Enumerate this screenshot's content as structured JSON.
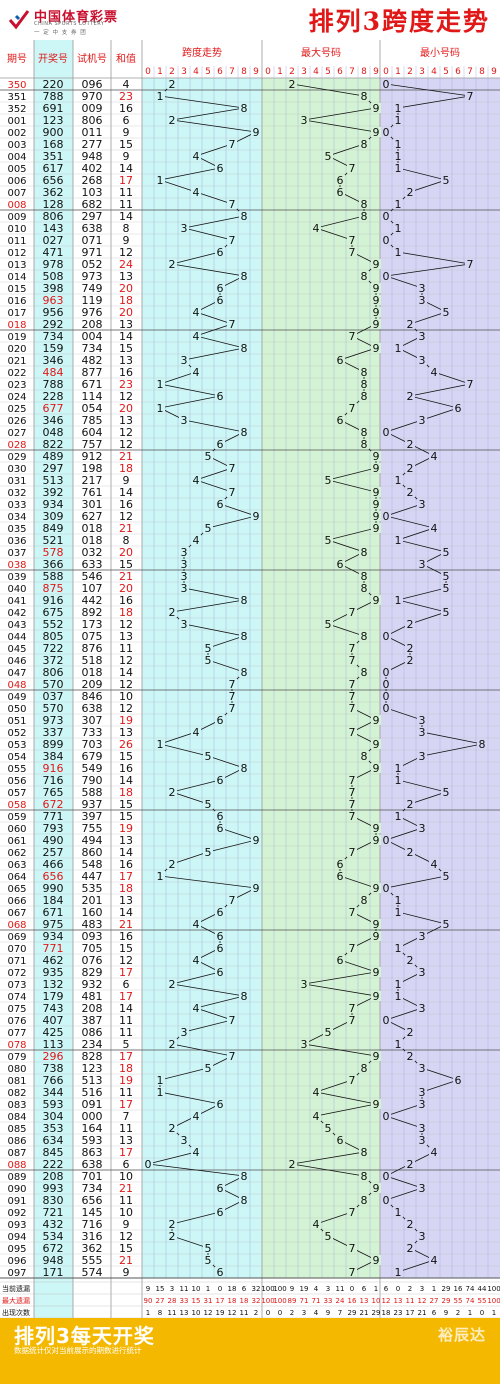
{
  "header": {
    "logo_name": "中国体育彩票",
    "logo_en": "CHINA SPORTS LOTTERY",
    "logo_sub": "一 定 中 支 券 团",
    "title": "排列3跨度走势"
  },
  "columns": {
    "period": "期号",
    "draw": "开奖号",
    "test": "试机号",
    "sum": "和值",
    "span_trend": "跨度走势",
    "max_digit": "最大号码",
    "min_digit": "最小号码"
  },
  "digits": [
    "0",
    "1",
    "2",
    "3",
    "4",
    "5",
    "6",
    "7",
    "8",
    "9"
  ],
  "colors": {
    "accent": "#e01818",
    "line": "#111111",
    "span_bg": "#cdf6f6",
    "max_bg": "#d4f3d4",
    "min_bg": "#d6d6f4",
    "period_bg": "#fce4ec",
    "footer_bg": "#f5b800"
  },
  "stats_labels": [
    "当前遗漏",
    "最大遗漏",
    "出现次数",
    "最大连出"
  ],
  "stats": {
    "span": [
      [
        "9",
        "15",
        "3",
        "11",
        "10",
        "1",
        "0",
        "18",
        "6",
        "32"
      ],
      [
        "90",
        "27",
        "28",
        "33",
        "15",
        "31",
        "17",
        "18",
        "18",
        "32"
      ],
      [
        "1",
        "8",
        "11",
        "13",
        "10",
        "12",
        "19",
        "12",
        "11",
        "2"
      ],
      [
        "1",
        "2",
        "3",
        "4",
        "1",
        "2",
        "2",
        "3",
        "1",
        "1"
      ]
    ],
    "max": [
      [
        "100",
        "100",
        "9",
        "19",
        "4",
        "3",
        "11",
        "0",
        "6",
        "1"
      ],
      [
        "100",
        "100",
        "89",
        "71",
        "71",
        "33",
        "24",
        "16",
        "13",
        "10"
      ],
      [
        "0",
        "0",
        "2",
        "3",
        "4",
        "9",
        "7",
        "29",
        "21",
        "29"
      ],
      [
        "0",
        "0",
        "1",
        "1",
        "1",
        "2",
        "1",
        "3",
        "3",
        "4"
      ]
    ],
    "min": [
      [
        "6",
        "0",
        "2",
        "3",
        "1",
        "29",
        "16",
        "74",
        "44",
        "100"
      ],
      [
        "12",
        "13",
        "11",
        "12",
        "27",
        "29",
        "55",
        "74",
        "55",
        "100"
      ],
      [
        "18",
        "23",
        "17",
        "21",
        "6",
        "9",
        "2",
        "1",
        "0",
        "1"
      ],
      [
        "4",
        "3",
        "2",
        "2",
        "1",
        "2",
        "1",
        "1",
        "0",
        "0"
      ]
    ]
  },
  "footer": {
    "title": "排列3每天开奖",
    "note": "数据统计仅对当前展示的期数进行统计",
    "brand": "裕辰达"
  },
  "chart_data": {
    "type": "table",
    "title": "排列3跨度走势",
    "columns": [
      "期号",
      "开奖号",
      "试机号",
      "和值",
      "跨度走势",
      "最大号码",
      "最小号码"
    ],
    "rows": [
      {
        "p": "350",
        "d": "220",
        "t": "096",
        "s": 4,
        "span": 2,
        "max": 2,
        "min": 0
      },
      {
        "p": "351",
        "d": "788",
        "t": "970",
        "s": 23,
        "span": 1,
        "max": 8,
        "min": 7
      },
      {
        "p": "352",
        "d": "691",
        "t": "009",
        "s": 16,
        "span": 8,
        "max": 9,
        "min": 1
      },
      {
        "p": "001",
        "d": "123",
        "t": "806",
        "s": 6,
        "span": 2,
        "max": 3,
        "min": 1
      },
      {
        "p": "002",
        "d": "900",
        "t": "011",
        "s": 9,
        "span": 9,
        "max": 9,
        "min": 0
      },
      {
        "p": "003",
        "d": "168",
        "t": "277",
        "s": 15,
        "span": 7,
        "max": 8,
        "min": 1
      },
      {
        "p": "004",
        "d": "351",
        "t": "948",
        "s": 9,
        "span": 4,
        "max": 5,
        "min": 1
      },
      {
        "p": "005",
        "d": "617",
        "t": "402",
        "s": 14,
        "span": 6,
        "max": 7,
        "min": 1
      },
      {
        "p": "006",
        "d": "656",
        "t": "268",
        "s": 17,
        "span": 1,
        "max": 6,
        "min": 5
      },
      {
        "p": "007",
        "d": "362",
        "t": "103",
        "s": 11,
        "span": 4,
        "max": 6,
        "min": 2
      },
      {
        "p": "008",
        "d": "128",
        "t": "682",
        "s": 11,
        "span": 7,
        "max": 8,
        "min": 1
      },
      {
        "p": "009",
        "d": "806",
        "t": "297",
        "s": 14,
        "span": 8,
        "max": 8,
        "min": 0
      },
      {
        "p": "010",
        "d": "143",
        "t": "638",
        "s": 8,
        "span": 3,
        "max": 4,
        "min": 1
      },
      {
        "p": "011",
        "d": "027",
        "t": "071",
        "s": 9,
        "span": 7,
        "max": 7,
        "min": 0
      },
      {
        "p": "012",
        "d": "471",
        "t": "971",
        "s": 12,
        "span": 6,
        "max": 7,
        "min": 1
      },
      {
        "p": "013",
        "d": "978",
        "t": "052",
        "s": 24,
        "span": 2,
        "max": 9,
        "min": 7
      },
      {
        "p": "014",
        "d": "508",
        "t": "973",
        "s": 13,
        "span": 8,
        "max": 8,
        "min": 0
      },
      {
        "p": "015",
        "d": "398",
        "t": "749",
        "s": 20,
        "span": 6,
        "max": 9,
        "min": 3
      },
      {
        "p": "016",
        "d": "963",
        "t": "119",
        "s": 18,
        "span": 6,
        "max": 9,
        "min": 3
      },
      {
        "p": "017",
        "d": "956",
        "t": "976",
        "s": 20,
        "span": 4,
        "max": 9,
        "min": 5
      },
      {
        "p": "018",
        "d": "292",
        "t": "208",
        "s": 13,
        "span": 7,
        "max": 9,
        "min": 2
      },
      {
        "p": "019",
        "d": "734",
        "t": "004",
        "s": 14,
        "span": 4,
        "max": 7,
        "min": 3
      },
      {
        "p": "020",
        "d": "159",
        "t": "734",
        "s": 15,
        "span": 8,
        "max": 9,
        "min": 1
      },
      {
        "p": "021",
        "d": "346",
        "t": "482",
        "s": 13,
        "span": 3,
        "max": 6,
        "min": 3
      },
      {
        "p": "022",
        "d": "484",
        "t": "877",
        "s": 16,
        "span": 4,
        "max": 8,
        "min": 4
      },
      {
        "p": "023",
        "d": "788",
        "t": "671",
        "s": 23,
        "span": 1,
        "max": 8,
        "min": 7
      },
      {
        "p": "024",
        "d": "228",
        "t": "114",
        "s": 12,
        "span": 6,
        "max": 8,
        "min": 2
      },
      {
        "p": "025",
        "d": "677",
        "t": "054",
        "s": 20,
        "span": 1,
        "max": 7,
        "min": 6
      },
      {
        "p": "026",
        "d": "346",
        "t": "785",
        "s": 13,
        "span": 3,
        "max": 6,
        "min": 3
      },
      {
        "p": "027",
        "d": "048",
        "t": "604",
        "s": 12,
        "span": 8,
        "max": 8,
        "min": 0
      },
      {
        "p": "028",
        "d": "822",
        "t": "757",
        "s": 12,
        "span": 6,
        "max": 8,
        "min": 2
      },
      {
        "p": "029",
        "d": "489",
        "t": "912",
        "s": 21,
        "span": 5,
        "max": 9,
        "min": 4
      },
      {
        "p": "030",
        "d": "297",
        "t": "198",
        "s": 18,
        "span": 7,
        "max": 9,
        "min": 2
      },
      {
        "p": "031",
        "d": "513",
        "t": "217",
        "s": 9,
        "span": 4,
        "max": 5,
        "min": 1
      },
      {
        "p": "032",
        "d": "392",
        "t": "761",
        "s": 14,
        "span": 7,
        "max": 9,
        "min": 2
      },
      {
        "p": "033",
        "d": "934",
        "t": "301",
        "s": 16,
        "span": 6,
        "max": 9,
        "min": 3
      },
      {
        "p": "034",
        "d": "309",
        "t": "627",
        "s": 12,
        "span": 9,
        "max": 9,
        "min": 0
      },
      {
        "p": "035",
        "d": "849",
        "t": "018",
        "s": 21,
        "span": 5,
        "max": 9,
        "min": 4
      },
      {
        "p": "036",
        "d": "521",
        "t": "018",
        "s": 8,
        "span": 4,
        "max": 5,
        "min": 1
      },
      {
        "p": "037",
        "d": "578",
        "t": "032",
        "s": 20,
        "span": 3,
        "max": 8,
        "min": 5
      },
      {
        "p": "038",
        "d": "366",
        "t": "633",
        "s": 15,
        "span": 3,
        "max": 6,
        "min": 3
      },
      {
        "p": "039",
        "d": "588",
        "t": "546",
        "s": 21,
        "span": 3,
        "max": 8,
        "min": 5
      },
      {
        "p": "040",
        "d": "875",
        "t": "107",
        "s": 20,
        "span": 3,
        "max": 8,
        "min": 5
      },
      {
        "p": "041",
        "d": "916",
        "t": "442",
        "s": 16,
        "span": 8,
        "max": 9,
        "min": 1
      },
      {
        "p": "042",
        "d": "675",
        "t": "892",
        "s": 18,
        "span": 2,
        "max": 7,
        "min": 5
      },
      {
        "p": "043",
        "d": "552",
        "t": "173",
        "s": 12,
        "span": 3,
        "max": 5,
        "min": 2
      },
      {
        "p": "044",
        "d": "805",
        "t": "075",
        "s": 13,
        "span": 8,
        "max": 8,
        "min": 0
      },
      {
        "p": "045",
        "d": "722",
        "t": "876",
        "s": 11,
        "span": 5,
        "max": 7,
        "min": 2
      },
      {
        "p": "046",
        "d": "372",
        "t": "518",
        "s": 12,
        "span": 5,
        "max": 7,
        "min": 2
      },
      {
        "p": "047",
        "d": "806",
        "t": "018",
        "s": 14,
        "span": 8,
        "max": 8,
        "min": 0
      },
      {
        "p": "048",
        "d": "570",
        "t": "209",
        "s": 12,
        "span": 7,
        "max": 7,
        "min": 0
      },
      {
        "p": "049",
        "d": "037",
        "t": "846",
        "s": 10,
        "span": 7,
        "max": 7,
        "min": 0
      },
      {
        "p": "050",
        "d": "570",
        "t": "638",
        "s": 12,
        "span": 7,
        "max": 7,
        "min": 0
      },
      {
        "p": "051",
        "d": "973",
        "t": "307",
        "s": 19,
        "span": 6,
        "max": 9,
        "min": 3
      },
      {
        "p": "052",
        "d": "337",
        "t": "733",
        "s": 13,
        "span": 4,
        "max": 7,
        "min": 3
      },
      {
        "p": "053",
        "d": "899",
        "t": "703",
        "s": 26,
        "span": 1,
        "max": 9,
        "min": 8
      },
      {
        "p": "054",
        "d": "384",
        "t": "679",
        "s": 15,
        "span": 5,
        "max": 8,
        "min": 3
      },
      {
        "p": "055",
        "d": "916",
        "t": "549",
        "s": 16,
        "span": 8,
        "max": 9,
        "min": 1
      },
      {
        "p": "056",
        "d": "716",
        "t": "790",
        "s": 14,
        "span": 6,
        "max": 7,
        "min": 1
      },
      {
        "p": "057",
        "d": "765",
        "t": "588",
        "s": 18,
        "span": 2,
        "max": 7,
        "min": 5
      },
      {
        "p": "058",
        "d": "672",
        "t": "937",
        "s": 15,
        "span": 5,
        "max": 7,
        "min": 2
      },
      {
        "p": "059",
        "d": "771",
        "t": "397",
        "s": 15,
        "span": 6,
        "max": 7,
        "min": 1
      },
      {
        "p": "060",
        "d": "793",
        "t": "755",
        "s": 19,
        "span": 6,
        "max": 9,
        "min": 3
      },
      {
        "p": "061",
        "d": "490",
        "t": "494",
        "s": 13,
        "span": 9,
        "max": 9,
        "min": 0
      },
      {
        "p": "062",
        "d": "257",
        "t": "860",
        "s": 14,
        "span": 5,
        "max": 7,
        "min": 2
      },
      {
        "p": "063",
        "d": "466",
        "t": "548",
        "s": 16,
        "span": 2,
        "max": 6,
        "min": 4
      },
      {
        "p": "064",
        "d": "656",
        "t": "447",
        "s": 17,
        "span": 1,
        "max": 6,
        "min": 5
      },
      {
        "p": "065",
        "d": "990",
        "t": "535",
        "s": 18,
        "span": 9,
        "max": 9,
        "min": 0
      },
      {
        "p": "066",
        "d": "184",
        "t": "201",
        "s": 13,
        "span": 7,
        "max": 8,
        "min": 1
      },
      {
        "p": "067",
        "d": "671",
        "t": "160",
        "s": 14,
        "span": 6,
        "max": 7,
        "min": 1
      },
      {
        "p": "068",
        "d": "975",
        "t": "483",
        "s": 21,
        "span": 4,
        "max": 9,
        "min": 5
      },
      {
        "p": "069",
        "d": "934",
        "t": "093",
        "s": 16,
        "span": 6,
        "max": 9,
        "min": 3
      },
      {
        "p": "070",
        "d": "771",
        "t": "705",
        "s": 15,
        "span": 6,
        "max": 7,
        "min": 1
      },
      {
        "p": "071",
        "d": "462",
        "t": "076",
        "s": 12,
        "span": 4,
        "max": 6,
        "min": 2
      },
      {
        "p": "072",
        "d": "935",
        "t": "829",
        "s": 17,
        "span": 6,
        "max": 9,
        "min": 3
      },
      {
        "p": "073",
        "d": "132",
        "t": "932",
        "s": 6,
        "span": 2,
        "max": 3,
        "min": 1
      },
      {
        "p": "074",
        "d": "179",
        "t": "481",
        "s": 17,
        "span": 8,
        "max": 9,
        "min": 1
      },
      {
        "p": "075",
        "d": "743",
        "t": "208",
        "s": 14,
        "span": 4,
        "max": 7,
        "min": 3
      },
      {
        "p": "076",
        "d": "407",
        "t": "387",
        "s": 11,
        "span": 7,
        "max": 7,
        "min": 0
      },
      {
        "p": "077",
        "d": "425",
        "t": "086",
        "s": 11,
        "span": 3,
        "max": 5,
        "min": 2
      },
      {
        "p": "078",
        "d": "113",
        "t": "234",
        "s": 5,
        "span": 2,
        "max": 3,
        "min": 1
      },
      {
        "p": "079",
        "d": "296",
        "t": "828",
        "s": 17,
        "span": 7,
        "max": 9,
        "min": 2
      },
      {
        "p": "080",
        "d": "738",
        "t": "123",
        "s": 18,
        "span": 5,
        "max": 8,
        "min": 3
      },
      {
        "p": "081",
        "d": "766",
        "t": "513",
        "s": 19,
        "span": 1,
        "max": 7,
        "min": 6
      },
      {
        "p": "082",
        "d": "344",
        "t": "516",
        "s": 11,
        "span": 1,
        "max": 4,
        "min": 3
      },
      {
        "p": "083",
        "d": "593",
        "t": "091",
        "s": 17,
        "span": 6,
        "max": 9,
        "min": 3
      },
      {
        "p": "084",
        "d": "304",
        "t": "000",
        "s": 7,
        "span": 4,
        "max": 4,
        "min": 0
      },
      {
        "p": "085",
        "d": "353",
        "t": "164",
        "s": 11,
        "span": 2,
        "max": 5,
        "min": 3
      },
      {
        "p": "086",
        "d": "634",
        "t": "593",
        "s": 13,
        "span": 3,
        "max": 6,
        "min": 3
      },
      {
        "p": "087",
        "d": "845",
        "t": "863",
        "s": 17,
        "span": 4,
        "max": 8,
        "min": 4
      },
      {
        "p": "088",
        "d": "222",
        "t": "638",
        "s": 6,
        "span": 0,
        "max": 2,
        "min": 2
      },
      {
        "p": "089",
        "d": "208",
        "t": "701",
        "s": 10,
        "span": 8,
        "max": 8,
        "min": 0
      },
      {
        "p": "090",
        "d": "993",
        "t": "734",
        "s": 21,
        "span": 6,
        "max": 9,
        "min": 3
      },
      {
        "p": "091",
        "d": "830",
        "t": "656",
        "s": 11,
        "span": 8,
        "max": 8,
        "min": 0
      },
      {
        "p": "092",
        "d": "721",
        "t": "145",
        "s": 10,
        "span": 6,
        "max": 7,
        "min": 1
      },
      {
        "p": "093",
        "d": "432",
        "t": "716",
        "s": 9,
        "span": 2,
        "max": 4,
        "min": 2
      },
      {
        "p": "094",
        "d": "534",
        "t": "316",
        "s": 12,
        "span": 2,
        "max": 5,
        "min": 3
      },
      {
        "p": "095",
        "d": "672",
        "t": "362",
        "s": 15,
        "span": 5,
        "max": 7,
        "min": 2
      },
      {
        "p": "096",
        "d": "948",
        "t": "555",
        "s": 21,
        "span": 5,
        "max": 9,
        "min": 4
      },
      {
        "p": "097",
        "d": "171",
        "t": "574",
        "s": 9,
        "span": 6,
        "max": 7,
        "min": 1
      }
    ]
  }
}
